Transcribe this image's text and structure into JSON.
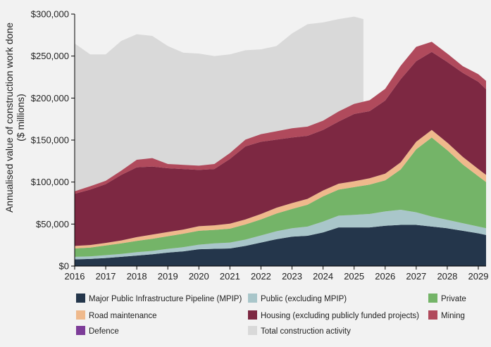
{
  "chart_data": {
    "type": "area",
    "stacked": true,
    "ylabel_line1": "Annualised value of construction work done",
    "ylabel_line2": "($ millions)",
    "ylim": [
      0,
      300000
    ],
    "xlim": [
      2016,
      2029.25
    ],
    "yticks": [
      0,
      50000,
      100000,
      150000,
      200000,
      250000,
      300000
    ],
    "ytick_labels": [
      "$0",
      "$50,000",
      "$100,000",
      "$150,000",
      "$200,000",
      "$250,000",
      "$300,000"
    ],
    "xticks": [
      2016,
      2017,
      2018,
      2019,
      2020,
      2021,
      2022,
      2023,
      2024,
      2025,
      2026,
      2027,
      2028,
      2029
    ],
    "xtick_labels": [
      "2016",
      "2017",
      "2018",
      "2019",
      "2020",
      "2021",
      "2022",
      "2023",
      "2024",
      "2025",
      "2026",
      "2027",
      "2028",
      "2029"
    ],
    "x": [
      2016,
      2016.5,
      2017,
      2017.5,
      2018,
      2018.5,
      2019,
      2019.5,
      2020,
      2020.5,
      2021,
      2021.5,
      2022,
      2022.5,
      2023,
      2023.5,
      2024,
      2024.5,
      2025,
      2025.5,
      2026,
      2026.5,
      2027,
      2027.5,
      2028,
      2028.5,
      2029,
      2029.25
    ],
    "total_construction": {
      "name": "Total construction activity",
      "color": "#d9d9d9",
      "x": [
        2016,
        2016.5,
        2017,
        2017.5,
        2018,
        2018.5,
        2019,
        2019.5,
        2020,
        2020.5,
        2021,
        2021.5,
        2022,
        2022.5,
        2023,
        2023.5,
        2024,
        2024.5,
        2025,
        2025.3
      ],
      "values": [
        265000,
        252000,
        252000,
        268000,
        276000,
        274000,
        262000,
        254000,
        253000,
        250000,
        252000,
        257000,
        258000,
        262000,
        277000,
        288000,
        290000,
        294000,
        297000,
        294000
      ]
    },
    "series": [
      {
        "name": "Major Public Infrastructure Pipeline (MPIP)",
        "color": "#24364b",
        "values": [
          8000,
          8500,
          9500,
          11000,
          12500,
          14000,
          16000,
          17500,
          20000,
          20500,
          21000,
          24000,
          28000,
          32000,
          35000,
          36000,
          40000,
          46000,
          46000,
          46000,
          48000,
          49000,
          49000,
          47000,
          45000,
          42000,
          39000,
          37000
        ]
      },
      {
        "name": "Public (excluding MPIP)",
        "color": "#a9c6ca",
        "values": [
          3000,
          3000,
          3500,
          3500,
          4000,
          4000,
          4500,
          5000,
          5500,
          6500,
          7000,
          7500,
          8500,
          9500,
          10000,
          11000,
          13000,
          14000,
          15000,
          16000,
          17000,
          18000,
          15000,
          12000,
          10000,
          9000,
          8000,
          8000
        ]
      },
      {
        "name": "Private",
        "color": "#74b468",
        "values": [
          10000,
          10500,
          11500,
          12500,
          13500,
          14500,
          15000,
          16000,
          16500,
          16000,
          16500,
          18000,
          19000,
          21000,
          23000,
          26000,
          30000,
          31000,
          33000,
          35000,
          37000,
          48000,
          75000,
          94000,
          83000,
          70000,
          60000,
          55000
        ]
      },
      {
        "name": "Road maintenance",
        "color": "#efb98c",
        "values": [
          3000,
          3000,
          3000,
          3500,
          4500,
          5000,
          5000,
          5000,
          5500,
          5500,
          6000,
          6000,
          6500,
          7000,
          7000,
          7000,
          7000,
          7000,
          7000,
          7500,
          8000,
          8500,
          9000,
          9000,
          9000,
          9000,
          8500,
          8500
        ]
      },
      {
        "name": "Housing (excluding publicly funded projects)",
        "color": "#7d2842",
        "values": [
          62000,
          66000,
          70000,
          78000,
          83000,
          81000,
          76000,
          72000,
          67000,
          67000,
          77000,
          87000,
          86000,
          81000,
          78000,
          75000,
          72000,
          74000,
          80000,
          80000,
          87000,
          99000,
          96000,
          93000,
          96000,
          100000,
          104000,
          102000
        ]
      },
      {
        "name": "Mining",
        "color": "#b04a5c",
        "values": [
          3000,
          4000,
          4000,
          5000,
          9000,
          10000,
          5000,
          5000,
          5000,
          6000,
          7000,
          8000,
          9000,
          10000,
          11000,
          11000,
          11000,
          12000,
          12000,
          13000,
          14000,
          16000,
          17000,
          12000,
          10000,
          8000,
          9000,
          10000
        ]
      },
      {
        "name": "Defence",
        "color": "#7d3c98",
        "values": [
          0,
          0,
          0,
          0,
          0,
          0,
          0,
          0,
          0,
          0,
          0,
          0,
          0,
          0,
          0,
          0,
          0,
          0,
          0,
          0,
          0,
          0,
          0,
          0,
          0,
          0,
          0,
          0
        ]
      }
    ],
    "legend_position": "bottom",
    "legend": [
      {
        "label": "Major Public Infrastructure Pipeline (MPIP)",
        "color": "#24364b"
      },
      {
        "label": "Public (excluding MPIP)",
        "color": "#a9c6ca"
      },
      {
        "label": "Private",
        "color": "#74b468"
      },
      {
        "label": "Road maintenance",
        "color": "#efb98c"
      },
      {
        "label": "Housing (excluding publicly funded projects)",
        "color": "#7d2842"
      },
      {
        "label": "Mining",
        "color": "#b04a5c"
      },
      {
        "label": "Defence",
        "color": "#7d3c98"
      },
      {
        "label": "Total construction activity",
        "color": "#d9d9d9"
      }
    ],
    "axis_color": "#000000",
    "grid": false
  }
}
